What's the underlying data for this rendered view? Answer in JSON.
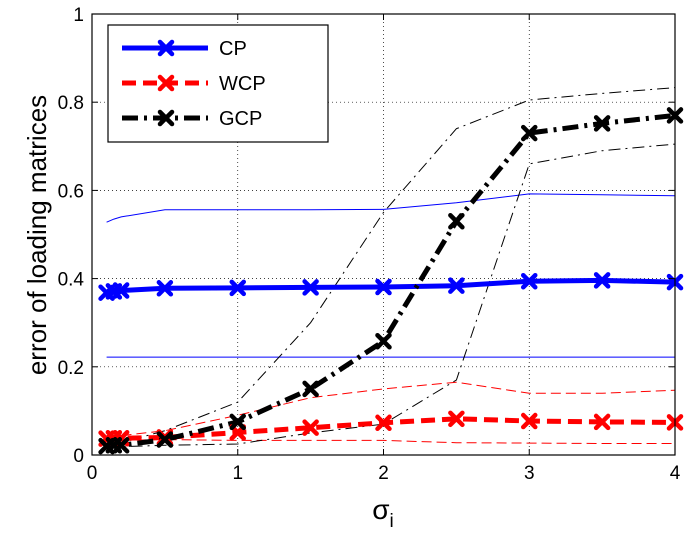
{
  "chart_data": {
    "type": "line",
    "xlabel": "σ",
    "xlabel_sub": "i",
    "ylabel": "error of loading matrices",
    "xlim": [
      0,
      4
    ],
    "ylim": [
      0,
      1
    ],
    "x_ticks": [
      "0",
      "1",
      "2",
      "3",
      "4"
    ],
    "y_ticks": [
      "0",
      "0.2",
      "0.4",
      "0.6",
      "0.8",
      "1"
    ],
    "grid": true,
    "legend_position": "top-left",
    "x": [
      0.1,
      0.15,
      0.2,
      0.5,
      1.0,
      1.5,
      2.0,
      2.5,
      3.0,
      3.5,
      4.0
    ],
    "series": [
      {
        "name": "CP",
        "color": "#0000ff",
        "style": "solid",
        "marker": "x",
        "values": [
          0.368,
          0.371,
          0.373,
          0.378,
          0.379,
          0.38,
          0.381,
          0.384,
          0.394,
          0.396,
          0.392
        ],
        "upper": [
          0.528,
          0.535,
          0.54,
          0.556,
          0.556,
          0.556,
          0.557,
          0.572,
          0.592,
          0.59,
          0.588
        ],
        "lower": [
          0.222,
          0.222,
          0.222,
          0.222,
          0.222,
          0.222,
          0.222,
          0.222,
          0.222,
          0.222,
          0.222
        ]
      },
      {
        "name": "WCP",
        "color": "#ff0000",
        "style": "dashed",
        "marker": "x",
        "values": [
          0.037,
          0.038,
          0.038,
          0.04,
          0.051,
          0.062,
          0.073,
          0.082,
          0.077,
          0.075,
          0.074
        ],
        "upper": [
          0.04,
          0.042,
          0.044,
          0.055,
          0.09,
          0.13,
          0.15,
          0.165,
          0.14,
          0.14,
          0.147
        ],
        "lower": [
          0.033,
          0.033,
          0.033,
          0.035,
          0.033,
          0.033,
          0.033,
          0.028,
          0.027,
          0.026,
          0.026
        ]
      },
      {
        "name": "GCP",
        "color": "#000000",
        "style": "dashdot",
        "marker": "x",
        "values": [
          0.02,
          0.022,
          0.022,
          0.035,
          0.075,
          0.15,
          0.258,
          0.53,
          0.73,
          0.752,
          0.77
        ],
        "upper": [
          0.022,
          0.025,
          0.028,
          0.055,
          0.12,
          0.3,
          0.55,
          0.74,
          0.805,
          0.82,
          0.833
        ],
        "lower": [
          0.018,
          0.019,
          0.019,
          0.022,
          0.025,
          0.05,
          0.07,
          0.17,
          0.66,
          0.69,
          0.705
        ]
      }
    ]
  }
}
